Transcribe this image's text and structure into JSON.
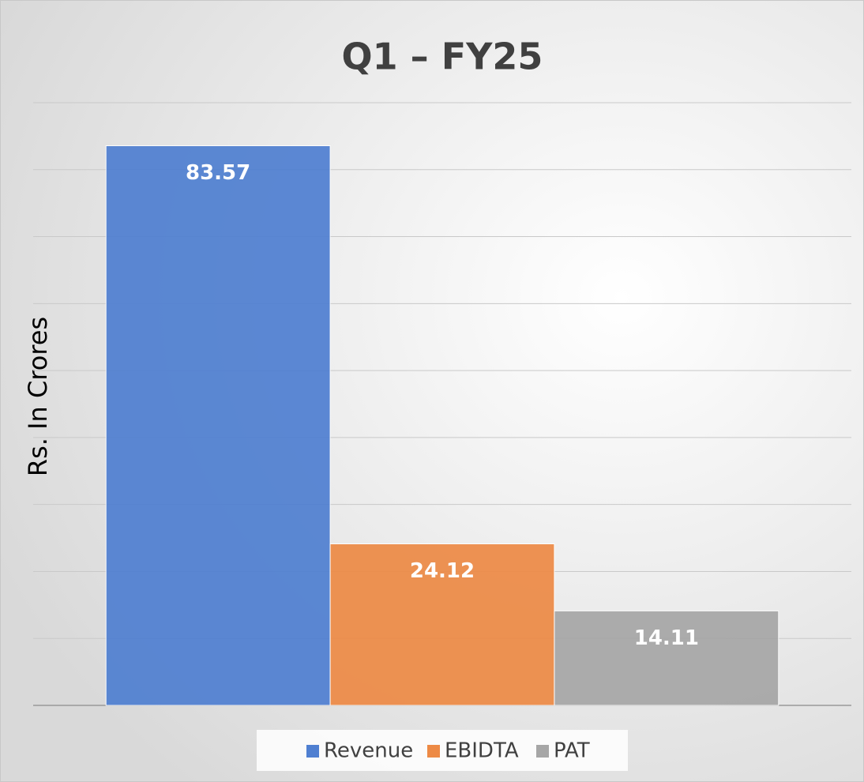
{
  "chart_data": {
    "type": "bar",
    "title": "Q1 – FY25",
    "y_label": "Rs. In Crores",
    "categories": [
      null
    ],
    "series": [
      {
        "name": "Revenue",
        "color": "#4f7fd1",
        "values": [
          83.57
        ]
      },
      {
        "name": "EBIDTA",
        "color": "#ed8a45",
        "values": [
          24.12
        ]
      },
      {
        "name": "PAT",
        "color": "#a6a6a6",
        "values": [
          14.11
        ]
      }
    ],
    "ylim": [
      0,
      90
    ],
    "yticks": [
      0,
      10,
      20,
      30,
      40,
      50,
      60,
      70,
      80,
      90
    ],
    "grid": true,
    "legend": "bottom"
  }
}
